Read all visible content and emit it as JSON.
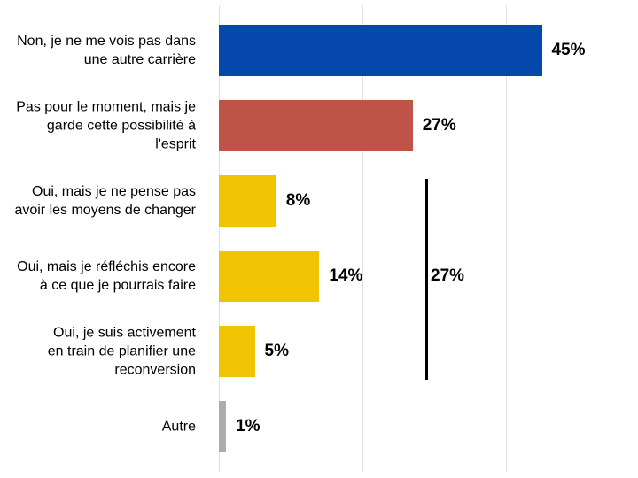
{
  "chart_data": {
    "type": "bar",
    "orientation": "horizontal",
    "title": "",
    "xlabel": "",
    "ylabel": "",
    "xlim": [
      0,
      58
    ],
    "grid": {
      "show": true,
      "at_percent": [
        0,
        20,
        40
      ],
      "color": "#e1e1e1"
    },
    "background": "#ffffff",
    "text_color": "#000000",
    "bars": [
      {
        "label": "Non, je ne me vois pas dans une autre carrière",
        "label_lines": "Non, je ne me vois pas dans\nune autre carrière",
        "value": 45,
        "value_label": "45%",
        "color": "#0448ab"
      },
      {
        "label": "Pas pour le moment, mais je garde cette possibilité à l'esprit",
        "label_lines": "Pas pour le moment, mais je\ngarde cette possibilité à\nl'esprit",
        "value": 27,
        "value_label": "27%",
        "color": "#c05348"
      },
      {
        "label": "Oui, mais je ne pense pas avoir les moyens de changer",
        "label_lines": "Oui, mais je ne pense pas\navoir les moyens de changer",
        "value": 8,
        "value_label": "8%",
        "color": "#f0c402"
      },
      {
        "label": "Oui, mais je réfléchis encore à ce que je pourrais faire",
        "label_lines": "Oui, mais je réfléchis encore\nà ce que je pourrais faire",
        "value": 14,
        "value_label": "14%",
        "color": "#f0c402"
      },
      {
        "label": "Oui, je suis activement en train de planifier une reconversion",
        "label_lines": "Oui, je suis activement\nen train de planifier une\nreconversion",
        "value": 5,
        "value_label": "5%",
        "color": "#f0c402"
      },
      {
        "label": "Autre",
        "label_lines": "Autre",
        "value": 1,
        "value_label": "1%",
        "color": "#acacac"
      }
    ],
    "annotation": {
      "text": "27%",
      "spans_bars_from": 2,
      "spans_bars_to": 4,
      "line_color": "#000000"
    }
  }
}
